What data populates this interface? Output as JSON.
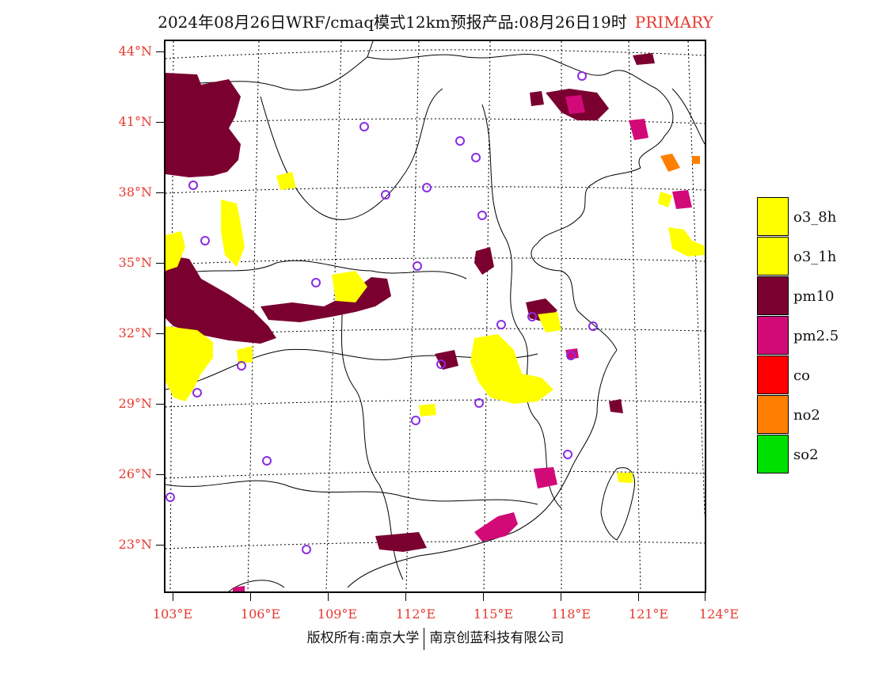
{
  "title": {
    "text": "2024年08月26日WRF/cmaq模式12km预报产品:08月26日19时",
    "tag": "PRIMARY"
  },
  "axes": {
    "lat_labels": [
      "44°N",
      "41°N",
      "38°N",
      "35°N",
      "32°N",
      "29°N",
      "26°N",
      "23°N"
    ],
    "lon_labels": [
      "103°E",
      "106°E",
      "109°E",
      "112°E",
      "115°E",
      "118°E",
      "121°E",
      "124°E"
    ]
  },
  "legend": {
    "items": [
      {
        "label": "o3_8h",
        "color": "#ffff00"
      },
      {
        "label": "o3_1h",
        "color": "#ffff00"
      },
      {
        "label": "pm10",
        "color": "#7a0030"
      },
      {
        "label": "pm2.5",
        "color": "#d10a78"
      },
      {
        "label": "co",
        "color": "#ff0000"
      },
      {
        "label": "no2",
        "color": "#ff7f00"
      },
      {
        "label": "so2",
        "color": "#00e000"
      }
    ]
  },
  "copyright": {
    "left": "版权所有:南京大学",
    "right": "南京创蓝科技有限公司"
  },
  "colors": {
    "axis_label": "#e8382f",
    "city_marker": "#8a2be2"
  }
}
